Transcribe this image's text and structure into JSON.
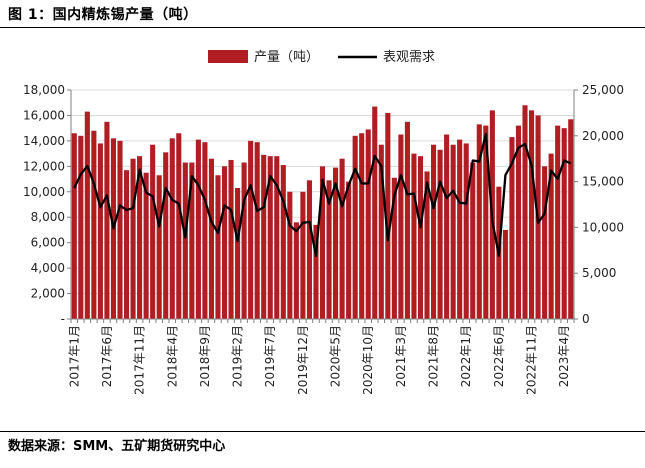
{
  "figure": {
    "title": "图 1：国内精炼锡产量（吨）",
    "source": "数据来源：SMM、五矿期货研究中心"
  },
  "colors": {
    "bar": "#B01E23",
    "line": "#000000",
    "axis": "#7f7f7f"
  },
  "chart_data": {
    "type": "bar",
    "title": "国内精炼锡产量（吨）",
    "legend_position": "top",
    "categories": [
      "2017年1月",
      "2017年2月",
      "2017年3月",
      "2017年4月",
      "2017年5月",
      "2017年6月",
      "2017年7月",
      "2017年8月",
      "2017年9月",
      "2017年10月",
      "2017年11月",
      "2017年12月",
      "2018年1月",
      "2018年2月",
      "2018年3月",
      "2018年4月",
      "2018年5月",
      "2018年6月",
      "2018年7月",
      "2018年8月",
      "2018年9月",
      "2018年10月",
      "2018年11月",
      "2018年12月",
      "2019年1月",
      "2019年2月",
      "2019年3月",
      "2019年4月",
      "2019年5月",
      "2019年6月",
      "2019年7月",
      "2019年8月",
      "2019年9月",
      "2019年10月",
      "2019年11月",
      "2019年12月",
      "2020年1月",
      "2020年2月",
      "2020年3月",
      "2020年4月",
      "2020年5月",
      "2020年6月",
      "2020年7月",
      "2020年8月",
      "2020年9月",
      "2020年10月",
      "2020年11月",
      "2020年12月",
      "2021年1月",
      "2021年2月",
      "2021年3月",
      "2021年4月",
      "2021年5月",
      "2021年6月",
      "2021年7月",
      "2021年8月",
      "2021年9月",
      "2021年10月",
      "2021年11月",
      "2021年12月",
      "2022年1月",
      "2022年2月",
      "2022年3月",
      "2022年4月",
      "2022年5月",
      "2022年6月",
      "2022年7月",
      "2022年8月",
      "2022年9月",
      "2022年10月",
      "2022年11月",
      "2022年12月",
      "2023年1月",
      "2023年2月",
      "2023年3月",
      "2023年4月",
      "2023年5月"
    ],
    "x_tick_labels": [
      "2017年1月",
      "2017年6月",
      "2017年11月",
      "2018年4月",
      "2018年9月",
      "2019年2月",
      "2019年7月",
      "2019年12月",
      "2020年5月",
      "2020年10月",
      "2021年3月",
      "2021年8月",
      "2022年1月",
      "2022年6月",
      "2022年11月",
      "2023年4月"
    ],
    "series": [
      {
        "name": "产量（吨）",
        "type": "bar",
        "axis": "left",
        "values": [
          14600,
          14400,
          16300,
          14800,
          13800,
          15500,
          14200,
          14000,
          11700,
          12600,
          12800,
          11500,
          13700,
          11300,
          13100,
          14200,
          14600,
          12300,
          12300,
          14100,
          13900,
          12600,
          11300,
          12000,
          12500,
          10300,
          12300,
          14000,
          13900,
          12900,
          12800,
          12800,
          12100,
          10000,
          7600,
          10000,
          10900,
          7400,
          12000,
          10900,
          11900,
          12600,
          10800,
          14400,
          14600,
          14900,
          16700,
          13700,
          16200,
          11100,
          14500,
          15500,
          13000,
          12800,
          11600,
          13700,
          13300,
          14500,
          13700,
          14100,
          13800,
          12300,
          15300,
          15200,
          16400,
          10400,
          7000,
          14300,
          15200,
          16800,
          16400,
          16000,
          12000,
          13000,
          15200,
          15000,
          15700
        ]
      },
      {
        "name": "表观需求",
        "type": "line",
        "axis": "right",
        "values": [
          14300,
          15800,
          16700,
          14800,
          12200,
          13500,
          9900,
          12400,
          11900,
          12100,
          16300,
          13800,
          13400,
          10100,
          14300,
          13000,
          12600,
          8900,
          15600,
          14600,
          13000,
          10600,
          9400,
          12400,
          11900,
          8500,
          13000,
          14600,
          11800,
          12200,
          15600,
          14600,
          12900,
          10200,
          9600,
          10500,
          10600,
          6900,
          15200,
          12600,
          14800,
          12300,
          14600,
          16400,
          14800,
          14800,
          17800,
          16700,
          8600,
          13500,
          15700,
          13600,
          13700,
          10000,
          14900,
          12100,
          15000,
          13200,
          14000,
          12700,
          12600,
          17300,
          17200,
          20200,
          10700,
          6900,
          15700,
          17000,
          18700,
          19100,
          16800,
          10500,
          11500,
          16200,
          15300,
          17300,
          17000
        ]
      }
    ],
    "y_left": {
      "min": 0,
      "max": 18000,
      "step": 2000,
      "tick_labels": [
        "-",
        "2,000",
        "4,000",
        "6,000",
        "8,000",
        "10,000",
        "12,000",
        "14,000",
        "16,000",
        "18,000"
      ]
    },
    "y_right": {
      "min": 0,
      "max": 25000,
      "step": 5000,
      "tick_labels": [
        "0",
        "5,000",
        "10,000",
        "15,000",
        "20,000",
        "25,000"
      ]
    }
  }
}
